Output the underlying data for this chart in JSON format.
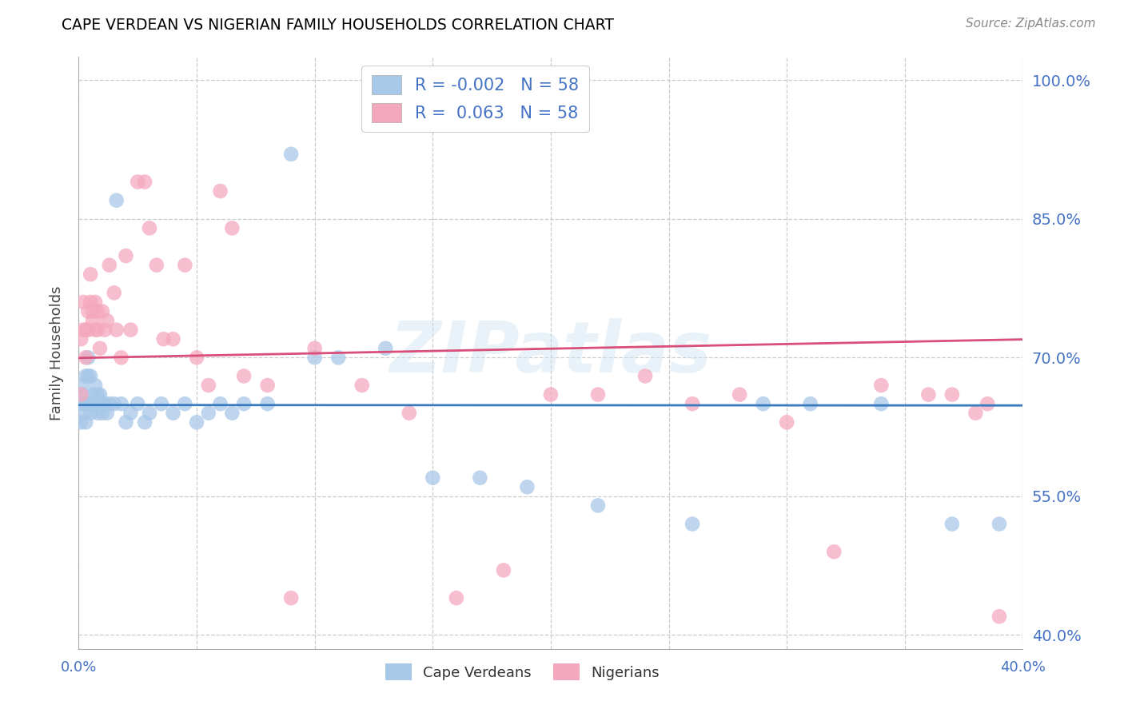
{
  "title": "CAPE VERDEAN VS NIGERIAN FAMILY HOUSEHOLDS CORRELATION CHART",
  "source": "Source: ZipAtlas.com",
  "ylabel": "Family Households",
  "legend_label1": "Cape Verdeans",
  "legend_label2": "Nigerians",
  "blue_color": "#a8c8e8",
  "pink_color": "#f4a8be",
  "blue_line_color": "#3a7abf",
  "pink_line_color": "#d94f7a",
  "ytick_labels": [
    "100.0%",
    "85.0%",
    "70.0%",
    "55.0%",
    "40.0%"
  ],
  "ytick_values": [
    1.0,
    0.85,
    0.7,
    0.55,
    0.4
  ],
  "xlim": [
    0.0,
    0.4
  ],
  "ylim": [
    0.385,
    1.025
  ],
  "blue_r": -0.002,
  "pink_r": 0.063,
  "blue_n": 58,
  "pink_n": 58,
  "blue_x": [
    0.001,
    0.001,
    0.001,
    0.002,
    0.002,
    0.002,
    0.003,
    0.003,
    0.003,
    0.004,
    0.004,
    0.005,
    0.005,
    0.005,
    0.006,
    0.006,
    0.007,
    0.007,
    0.008,
    0.008,
    0.009,
    0.009,
    0.01,
    0.01,
    0.011,
    0.012,
    0.013,
    0.015,
    0.016,
    0.018,
    0.02,
    0.022,
    0.025,
    0.028,
    0.03,
    0.035,
    0.04,
    0.045,
    0.05,
    0.055,
    0.06,
    0.065,
    0.07,
    0.08,
    0.09,
    0.1,
    0.11,
    0.13,
    0.15,
    0.17,
    0.19,
    0.22,
    0.26,
    0.29,
    0.31,
    0.34,
    0.37,
    0.39
  ],
  "blue_y": [
    0.67,
    0.65,
    0.63,
    0.66,
    0.65,
    0.64,
    0.68,
    0.65,
    0.63,
    0.7,
    0.68,
    0.68,
    0.65,
    0.64,
    0.66,
    0.65,
    0.67,
    0.65,
    0.66,
    0.64,
    0.66,
    0.65,
    0.65,
    0.64,
    0.65,
    0.64,
    0.65,
    0.65,
    0.87,
    0.65,
    0.63,
    0.64,
    0.65,
    0.63,
    0.64,
    0.65,
    0.64,
    0.65,
    0.63,
    0.64,
    0.65,
    0.64,
    0.65,
    0.65,
    0.92,
    0.7,
    0.7,
    0.71,
    0.57,
    0.57,
    0.56,
    0.54,
    0.52,
    0.65,
    0.65,
    0.65,
    0.52,
    0.52
  ],
  "pink_x": [
    0.001,
    0.001,
    0.002,
    0.002,
    0.003,
    0.003,
    0.004,
    0.004,
    0.005,
    0.005,
    0.006,
    0.006,
    0.007,
    0.007,
    0.008,
    0.008,
    0.009,
    0.01,
    0.011,
    0.012,
    0.013,
    0.015,
    0.016,
    0.018,
    0.02,
    0.022,
    0.025,
    0.028,
    0.03,
    0.033,
    0.036,
    0.04,
    0.045,
    0.05,
    0.055,
    0.06,
    0.065,
    0.07,
    0.08,
    0.09,
    0.1,
    0.12,
    0.14,
    0.16,
    0.18,
    0.2,
    0.22,
    0.24,
    0.26,
    0.28,
    0.3,
    0.32,
    0.34,
    0.36,
    0.37,
    0.38,
    0.385,
    0.39
  ],
  "pink_y": [
    0.66,
    0.72,
    0.73,
    0.76,
    0.73,
    0.7,
    0.75,
    0.73,
    0.79,
    0.76,
    0.75,
    0.74,
    0.76,
    0.73,
    0.75,
    0.73,
    0.71,
    0.75,
    0.73,
    0.74,
    0.8,
    0.77,
    0.73,
    0.7,
    0.81,
    0.73,
    0.89,
    0.89,
    0.84,
    0.8,
    0.72,
    0.72,
    0.8,
    0.7,
    0.67,
    0.88,
    0.84,
    0.68,
    0.67,
    0.44,
    0.71,
    0.67,
    0.64,
    0.44,
    0.47,
    0.66,
    0.66,
    0.68,
    0.65,
    0.66,
    0.63,
    0.49,
    0.67,
    0.66,
    0.66,
    0.64,
    0.65,
    0.42
  ]
}
